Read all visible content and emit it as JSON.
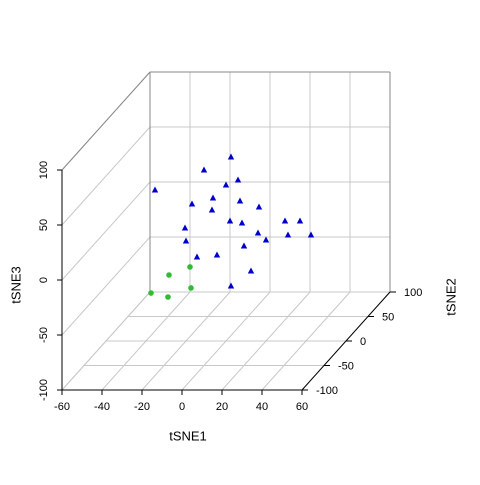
{
  "chart_data": {
    "type": "scatter3d",
    "x_label": "tSNE1",
    "y_label": "tSNE2",
    "z_label": "tSNE3",
    "xlim": [
      -60,
      60
    ],
    "ylim": [
      -100,
      100
    ],
    "zlim": [
      -100,
      100
    ],
    "xticks": [
      -60,
      -40,
      -20,
      0,
      20,
      40,
      60
    ],
    "yticks": [
      -100,
      -50,
      0,
      50,
      100
    ],
    "zticks": [
      -100,
      -50,
      0,
      50,
      100
    ],
    "grid": true,
    "series": [
      {
        "color": "#0000cc",
        "marker": "triangle",
        "x": [
          2.5,
          -11,
          6,
          0,
          -35.5,
          -6.5,
          7,
          -17,
          -7,
          16.5,
          2,
          8,
          29.5,
          37,
          -20.5,
          16,
          20,
          31,
          42.5,
          -20,
          9,
          -4.5,
          -14.5,
          12.5,
          2.5
        ],
        "y": [
          0,
          0,
          0,
          0,
          0,
          0,
          0,
          0,
          0,
          0,
          0,
          0,
          0,
          0,
          0,
          0,
          0,
          0,
          0,
          0,
          0,
          0,
          0,
          0,
          0
        ],
        "z": [
          67.3,
          55.5,
          46.4,
          41.8,
          37.3,
          30,
          27.3,
          24.5,
          19.1,
          21.8,
          9.1,
          7.3,
          9.1,
          9.1,
          2.7,
          -1.8,
          -8.2,
          -3.6,
          -3.6,
          -9.1,
          -13.6,
          -21.8,
          -23.6,
          -36.4,
          -50
        ]
      },
      {
        "color": "#33bb33",
        "marker": "circle",
        "x": [
          -28.5,
          -18,
          -17.5,
          -37.5,
          -29
        ],
        "y": [
          0,
          0,
          0,
          0,
          0
        ],
        "z": [
          -40,
          -32.7,
          -51.8,
          -56.4,
          -60
        ]
      }
    ]
  }
}
